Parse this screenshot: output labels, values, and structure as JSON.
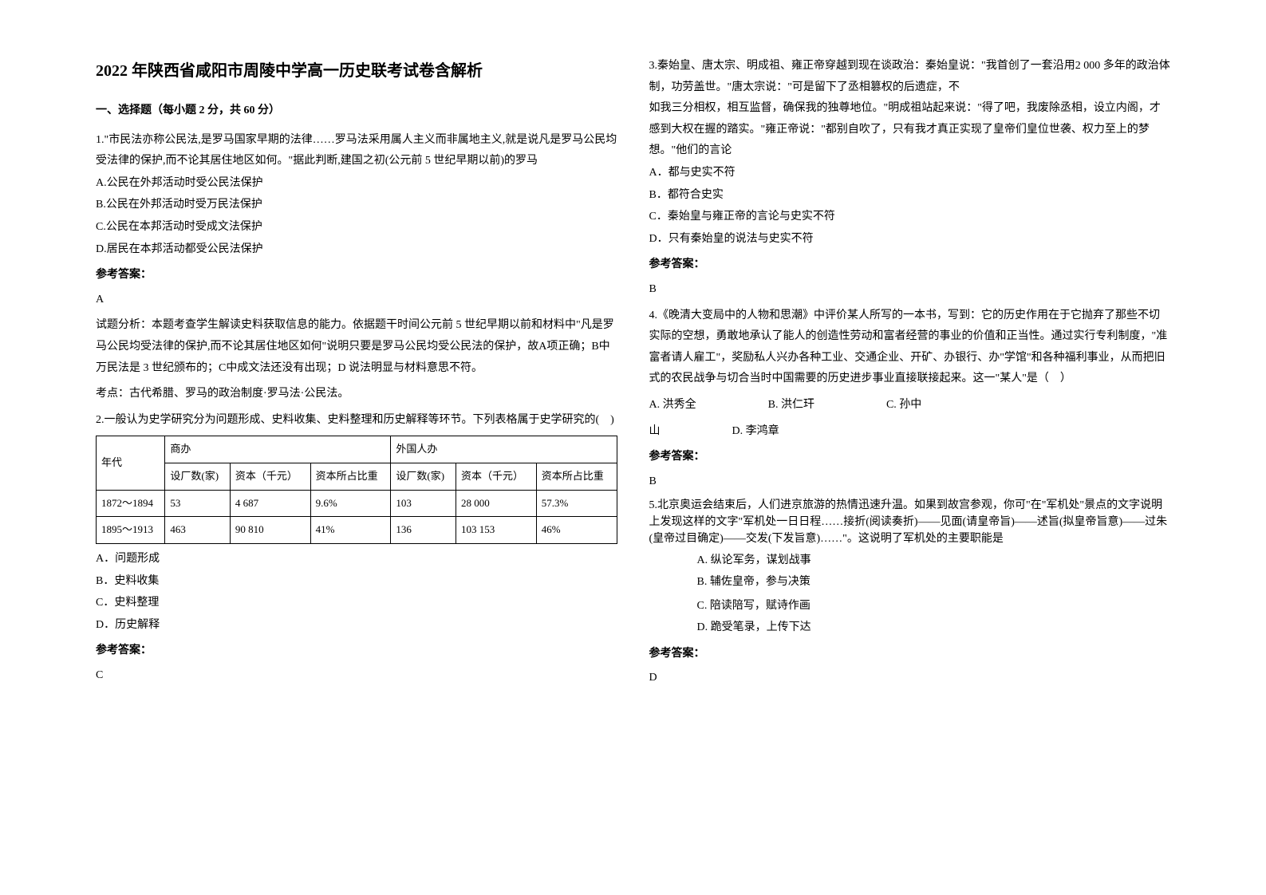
{
  "title": "2022 年陕西省咸阳市周陵中学高一历史联考试卷含解析",
  "section1_header": "一、选择题（每小题 2 分，共 60 分）",
  "q1": {
    "stem": "1.\"市民法亦称公民法,是罗马国家早期的法律……罗马法采用属人主义而非属地主义,就是说凡是罗马公民均受法律的保护,而不论其居住地区如何。\"据此判断,建国之初(公元前 5 世纪早期以前)的罗马",
    "opts": [
      "A.公民在外邦活动时受公民法保护",
      "B.公民在外邦活动时受万民法保护",
      "C.公民在本邦活动时受成文法保护",
      "D.居民在本邦活动都受公民法保护"
    ],
    "answer_label": "参考答案：",
    "answer": "A",
    "analysis": "试题分析：本题考查学生解读史料获取信息的能力。依据题干时间公元前 5 世纪早期以前和材料中\"凡是罗马公民均受法律的保护,而不论其居住地区如何\"说明只要是罗马公民均受公民法的保护，故A项正确；B中万民法是 3 世纪颁布的；C中成文法还没有出现；D 说法明显与材料意思不符。",
    "kaodian": "考点：古代希腊、罗马的政治制度·罗马法·公民法。"
  },
  "q2": {
    "stem": "2.一般认为史学研究分为问题形成、史料收集、史料整理和历史解释等环节。下列表格属于史学研究的(　)",
    "table": {
      "headers": [
        "年代",
        "商办",
        "",
        "",
        "外国人办",
        "",
        ""
      ],
      "sub_headers": [
        "",
        "设厂数(家)",
        "资本（千元）",
        "资本所占比重",
        "设厂数(家)",
        "资本（千元）",
        "资本所占比重"
      ],
      "rows": [
        [
          "1872～1894",
          "53",
          "4 687",
          "9.6%",
          "103",
          "28 000",
          "57.3%"
        ],
        [
          "1895～1913",
          "463",
          "90 810",
          "41%",
          "136",
          "103 153",
          "46%"
        ]
      ]
    },
    "opts": [
      "A．问题形成",
      "B．史料收集",
      "C．史料整理",
      "D．历史解释"
    ],
    "answer_label": "参考答案：",
    "answer": "C"
  },
  "q3": {
    "stem1": "3.秦始皇、唐太宗、明成祖、雍正帝穿越到现在谈政治：秦始皇说：\"我首创了一套沿用2 000 多年的政治体制，功劳盖世。\"唐太宗说：\"可是留下了丞相篡权的后遗症，不",
    "stem2": "如我三分相权，相互监督，确保我的独尊地位。\"明成祖站起来说：\"得了吧，我废除丞相，设立内阁，才感到大权在握的踏实。\"雍正帝说：\"都别自吹了，只有我才真正实现了皇帝们皇位世袭、权力至上的梦想。\"他们的言论",
    "opts": [
      "A．都与史实不符",
      "B．都符合史实",
      "C．秦始皇与雍正帝的言论与史实不符",
      "D．只有秦始皇的说法与史实不符"
    ],
    "answer_label": "参考答案：",
    "answer": "B"
  },
  "q4": {
    "stem": "4.《晚清大变局中的人物和思潮》中评价某人所写的一本书，写到：它的历史作用在于它抛弃了那些不切实际的空想，勇敢地承认了能人的创造性劳动和富者经营的事业的价值和正当性。通过实行专利制度，\"准富者请人雇工\"，奖励私人兴办各种工业、交通企业、开矿、办银行、办\"学馆\"和各种福利事业，从而把旧式的农民战争与切合当时中国需要的历史进步事业直接联接起来。这一\"某人\"是（　）",
    "opts_line1": [
      [
        "A. 洪秀全",
        ""
      ],
      [
        "B. 洪仁玕",
        ""
      ],
      [
        "C. 孙中",
        ""
      ]
    ],
    "opts_line2": [
      [
        "山",
        ""
      ],
      [
        "D. 李鸿章",
        ""
      ]
    ],
    "answer_label": "参考答案：",
    "answer": "B"
  },
  "q5": {
    "stem": "5.北京奥运会结束后，人们进京旅游的热情迅速升温。如果到故宫参观，你可\"在\"军机处\"景点的文字说明上发现这样的文字\"军机处一日日程……接折(阅读奏折)——见面(请皇帝旨)——述旨(拟皇帝旨意)——过朱(皇帝过目确定)——交发(下发旨意)……\"。这说明了军机处的主要职能是",
    "opts_row1": [
      [
        "A. 纵论军务，谋划战事",
        ""
      ],
      [
        "B. 辅佐皇帝，参与决策",
        ""
      ]
    ],
    "opts_row2": [
      [
        "C. 陪读陪写，赋诗作画",
        ""
      ],
      [
        "D. 跪受笔录，上传下达",
        ""
      ]
    ],
    "answer_label": "参考答案：",
    "answer": "D"
  }
}
